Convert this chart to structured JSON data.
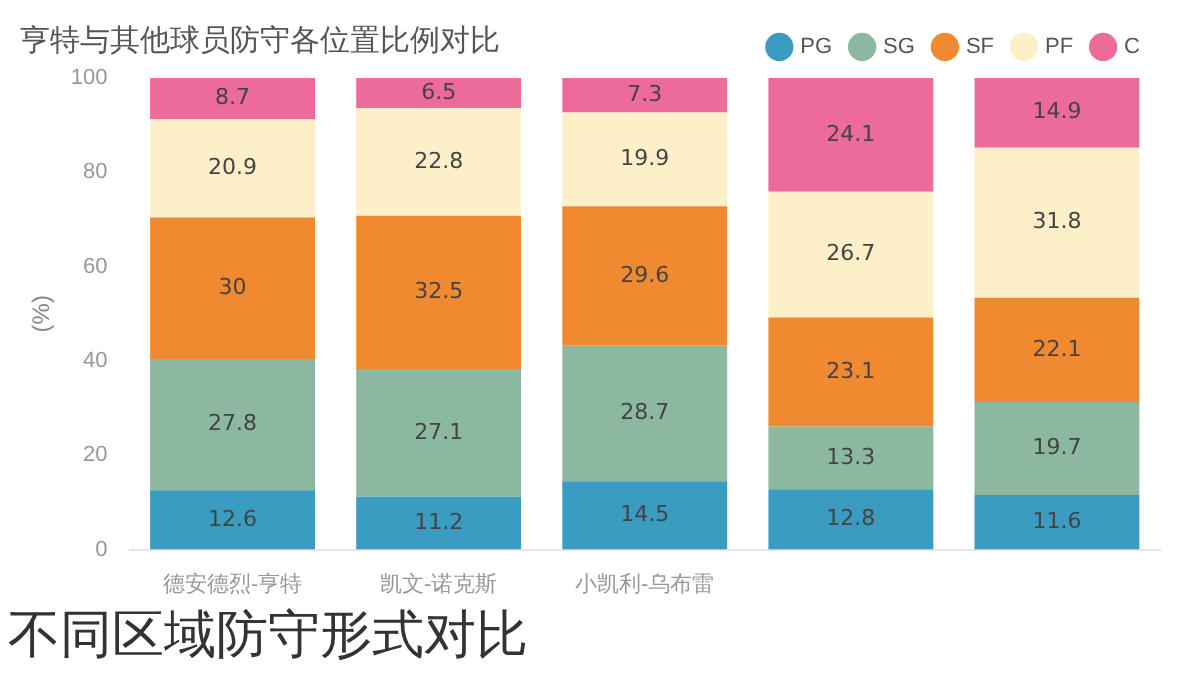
{
  "chart_data": {
    "type": "bar",
    "title": "亨特与其他球员防守各位置比例对比",
    "ylabel": "(%)",
    "categories": [
      "德安德烈-亨特",
      "凯文-诺克斯",
      "小凯利-乌布雷",
      null,
      null
    ],
    "series": [
      {
        "name": "PG",
        "color": "#3a9cc0",
        "values": [
          12.6,
          11.2,
          14.5,
          12.8,
          11.6
        ]
      },
      {
        "name": "SG",
        "color": "#8cb8a0",
        "values": [
          27.8,
          27.1,
          28.7,
          13.3,
          19.7
        ]
      },
      {
        "name": "SF",
        "color": "#f08a30",
        "values": [
          30,
          32.5,
          29.6,
          23.1,
          22.1
        ]
      },
      {
        "name": "PF",
        "color": "#fdf0c8",
        "values": [
          20.9,
          22.8,
          19.9,
          26.7,
          31.8
        ]
      },
      {
        "name": "C",
        "color": "#ec6b9a",
        "values": [
          8.7,
          6.5,
          7.3,
          24.1,
          14.9
        ]
      }
    ],
    "stacked": true,
    "ylim": [
      0,
      100
    ],
    "yticks": [
      0,
      20,
      40,
      60,
      80,
      100
    ],
    "grid": false,
    "legend": "top right",
    "data_labels": true,
    "annotations": [
      "不同区域防守形式对比"
    ]
  }
}
